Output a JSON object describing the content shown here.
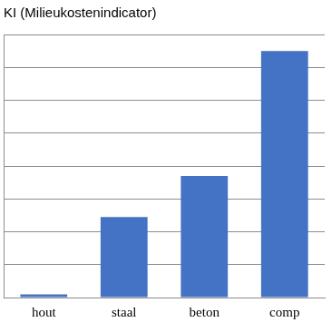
{
  "chart_data": {
    "type": "bar",
    "title": "KI (Milieukostenindicator)",
    "categories": [
      "hout",
      "staal",
      "beton",
      "comp"
    ],
    "values": [
      0.1,
      2.45,
      3.7,
      7.5
    ],
    "color": "#4472c4",
    "ylim": [
      0,
      8
    ],
    "yticks": [
      0,
      1,
      2,
      3,
      4,
      5,
      6,
      7,
      8
    ],
    "grid": true,
    "tick_labels": "x"
  }
}
